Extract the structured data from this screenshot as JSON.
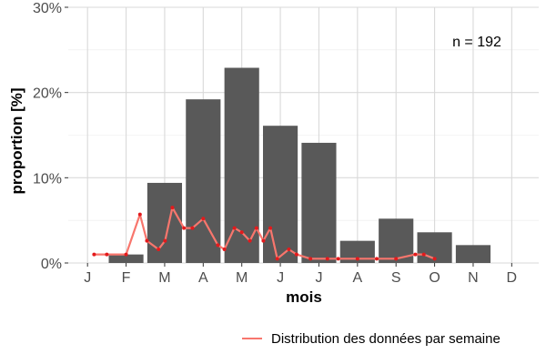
{
  "chart_data": {
    "type": "bar",
    "xlabel": "mois",
    "ylabel": "proportion [%]",
    "annotation": "n = 192",
    "categories": [
      "J",
      "F",
      "M",
      "A",
      "M",
      "J",
      "J",
      "A",
      "S",
      "O",
      "N",
      "D"
    ],
    "ylim": [
      0,
      30
    ],
    "yticks": [
      0,
      10,
      20,
      30
    ],
    "ytick_labels": [
      "0%",
      "10%",
      "20%",
      "30%"
    ],
    "grid": true,
    "series": [
      {
        "type": "bar",
        "values": [
          0,
          1.0,
          9.4,
          19.2,
          22.9,
          16.1,
          14.1,
          2.6,
          5.2,
          3.6,
          2.1,
          0
        ],
        "color": "#595959"
      },
      {
        "type": "line",
        "name": "Distribution des données par semaine",
        "color": "#f8766d",
        "point_color": "#e31a1c",
        "x": [
          1.17,
          1.5,
          2.0,
          2.36,
          2.54,
          2.84,
          3.01,
          3.2,
          3.5,
          3.72,
          4.0,
          4.38,
          4.55,
          4.81,
          5.0,
          5.21,
          5.38,
          5.56,
          5.74,
          5.92,
          6.22,
          6.42,
          6.78,
          7.22,
          7.5,
          8.0,
          8.5,
          9.0,
          9.5,
          9.72,
          10.0
        ],
        "values": [
          1.0,
          1.0,
          1.0,
          5.7,
          2.6,
          1.6,
          2.6,
          6.5,
          4.1,
          4.1,
          5.2,
          2.1,
          1.6,
          4.1,
          3.6,
          2.6,
          4.1,
          2.6,
          4.1,
          0.5,
          1.6,
          1.0,
          0.5,
          0.5,
          0.5,
          0.5,
          0.5,
          0.5,
          1.0,
          1.0,
          0.5
        ]
      }
    ],
    "legend": {
      "position": "bottom-right",
      "label": "Distribution des données par semaine"
    }
  }
}
